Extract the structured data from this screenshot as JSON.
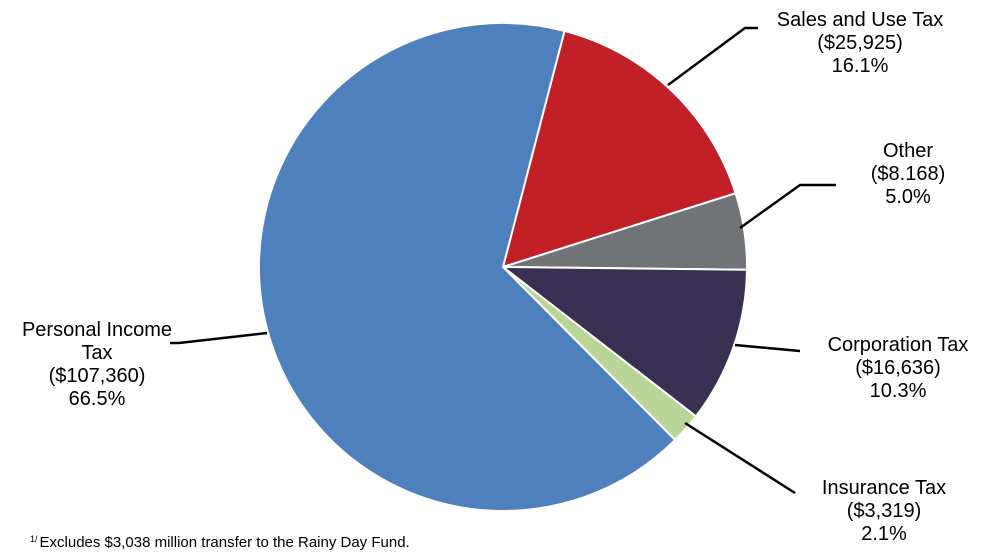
{
  "chart_data": {
    "type": "pie",
    "colors": {
      "personal": "#4d80bc",
      "sales": "#c12027",
      "other": "#717477",
      "corporation": "#3a3152",
      "insurance": "#b9d699",
      "slice_edge": "#ffffff",
      "leader": "#000000"
    },
    "slices": [
      {
        "key": "sales",
        "label": "Sales and Use Tax",
        "value_text": "($25,925)",
        "percent_text": "16.1%",
        "value": 25925,
        "percent": 16.1
      },
      {
        "key": "other",
        "label": "Other",
        "value_text": "($8.168)",
        "percent_text": "5.0%",
        "value": 8168,
        "percent": 5.0
      },
      {
        "key": "corporation",
        "label": "Corporation Tax",
        "value_text": "($16,636)",
        "percent_text": "10.3%",
        "value": 16636,
        "percent": 10.3
      },
      {
        "key": "insurance",
        "label": "Insurance Tax",
        "value_text": "($3,319)",
        "percent_text": "2.1%",
        "value": 3319,
        "percent": 2.1
      },
      {
        "key": "personal",
        "label": "Personal Income Tax",
        "label_lines": [
          "Personal Income",
          "Tax"
        ],
        "value_text": "($107,360)",
        "percent_text": "66.5%",
        "value": 107360,
        "percent": 66.5
      }
    ]
  },
  "footnote": {
    "marker": "1/",
    "text": "Excludes $3,038 million transfer to the Rainy Day Fund."
  }
}
